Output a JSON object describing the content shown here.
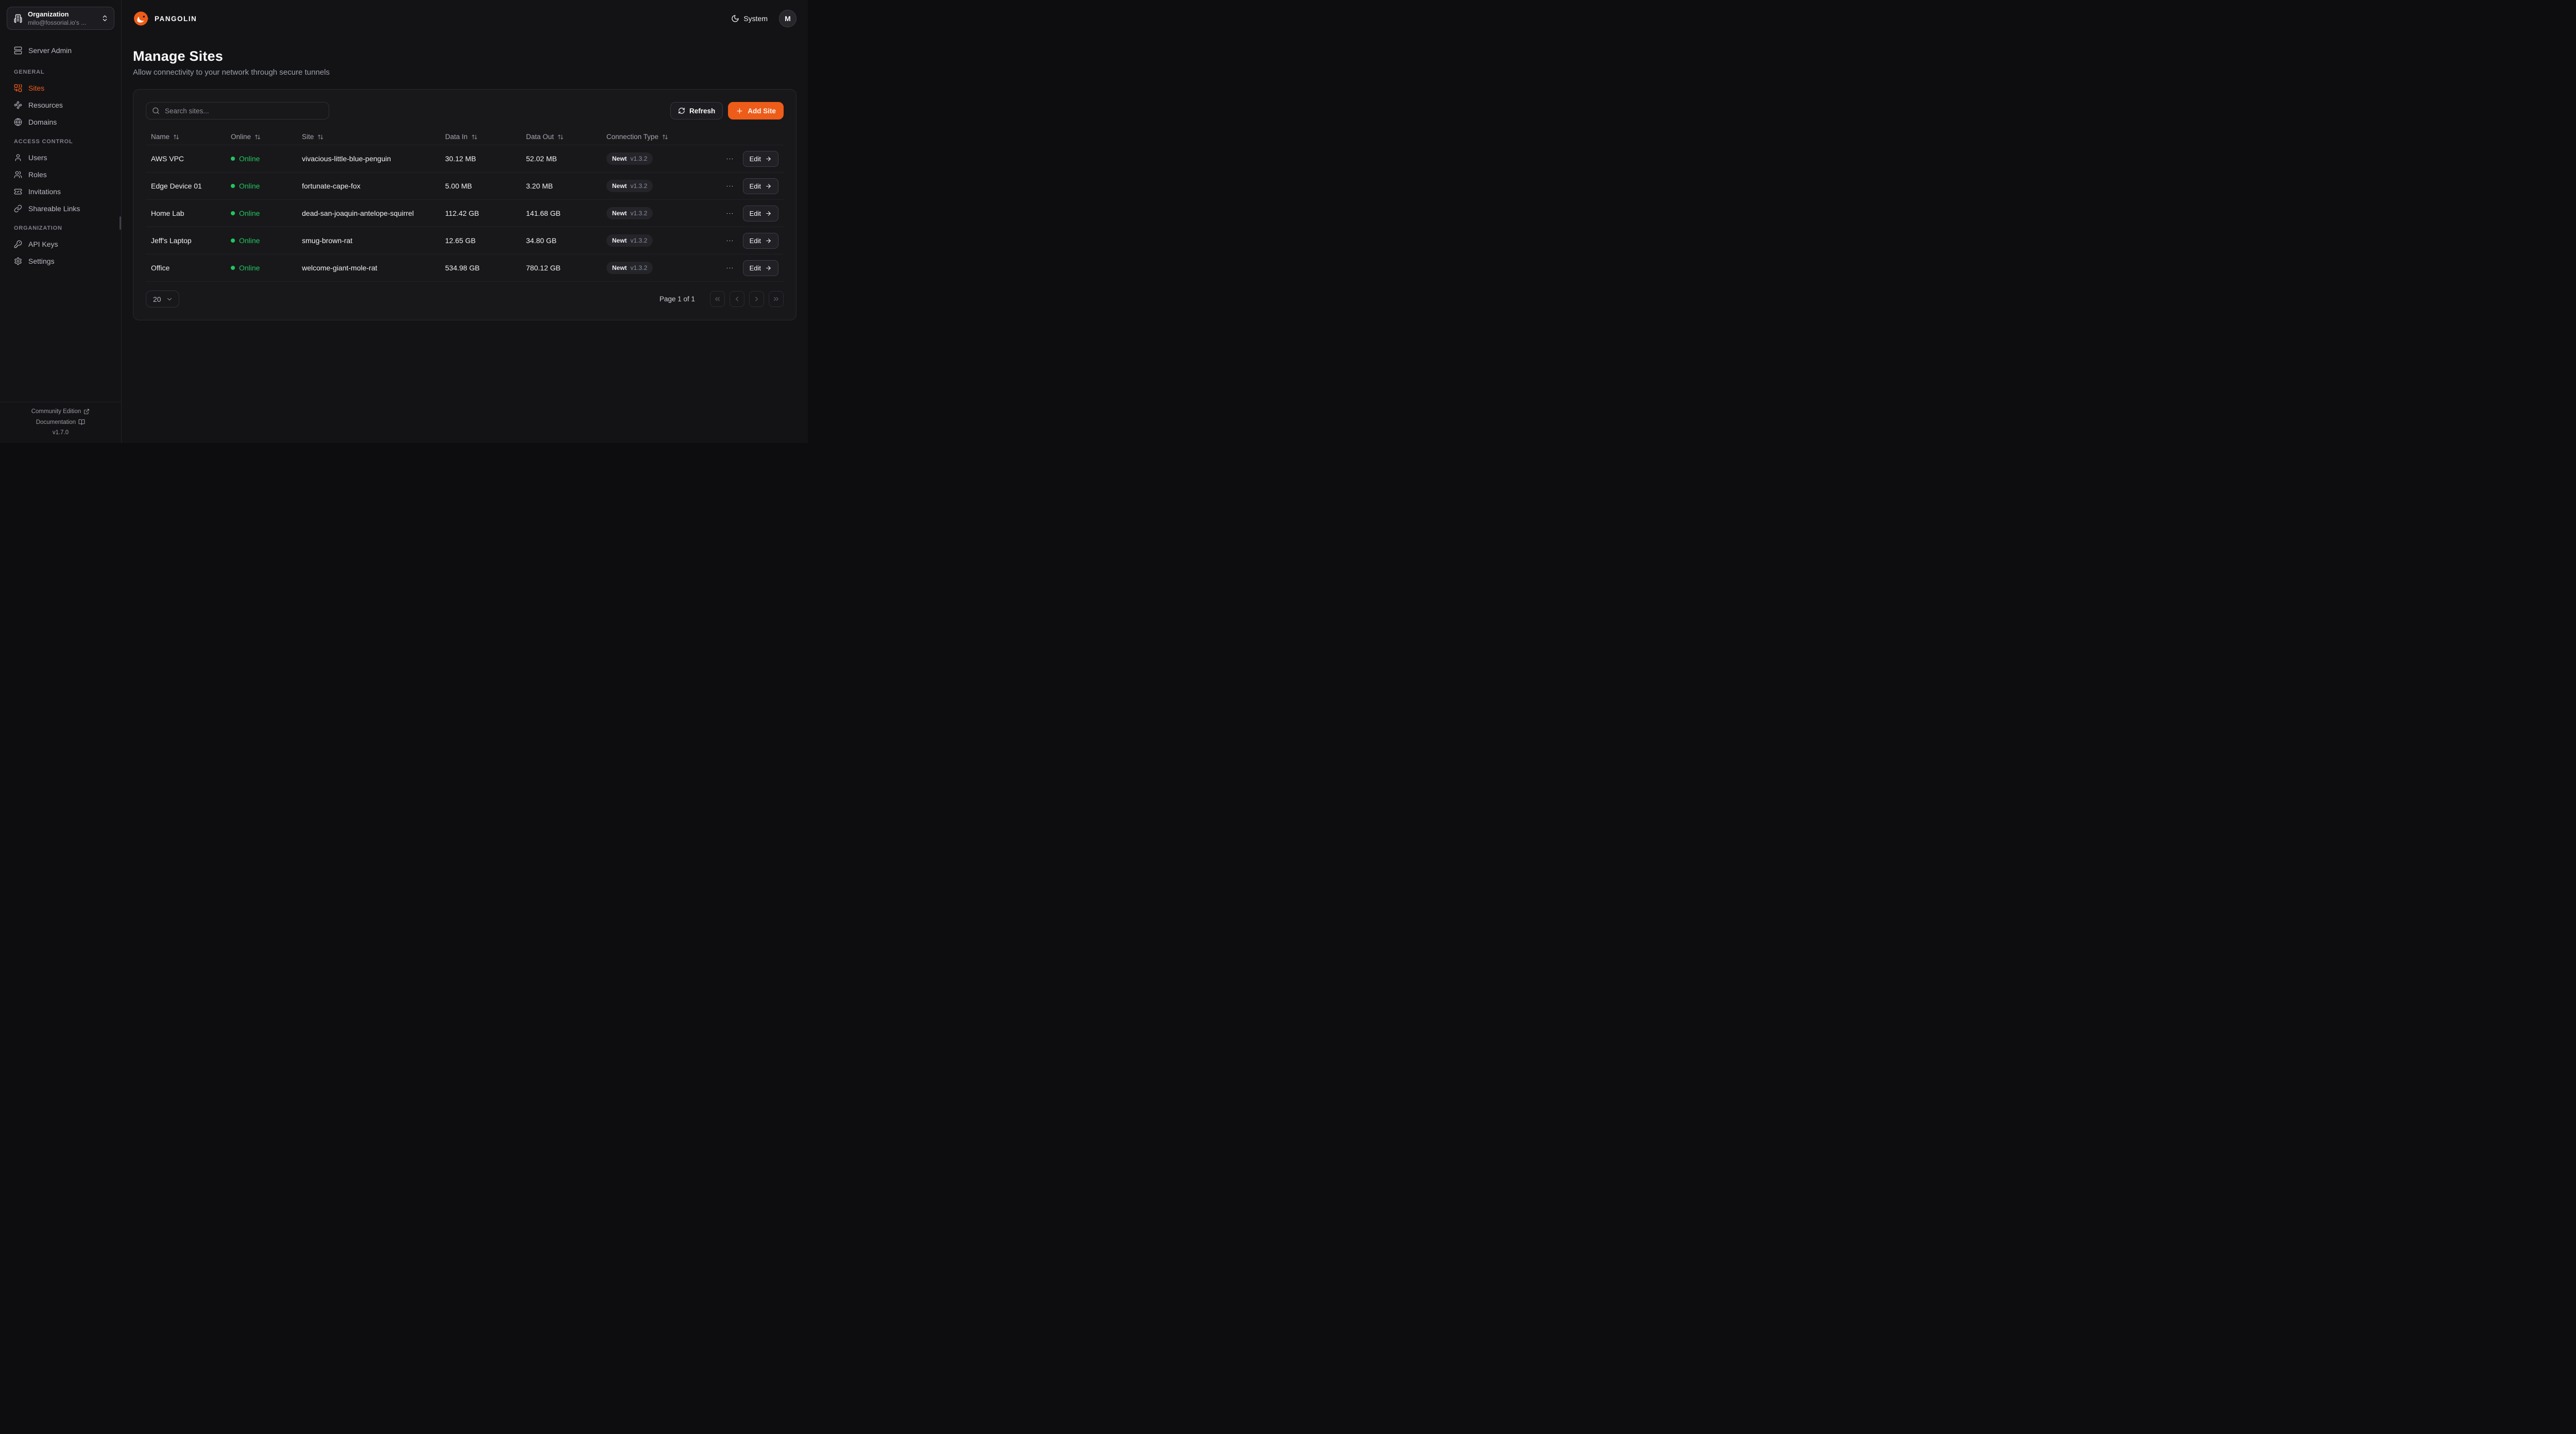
{
  "colors": {
    "accent": "#ee5c19",
    "online_green": "#22c55e"
  },
  "sidebar": {
    "org_picker": {
      "label": "Organization",
      "value": "milo@fossorial.io's ...",
      "icon": "building-icon",
      "chevron": "chevrons-up-down-icon"
    },
    "server_admin": {
      "label": "Server Admin",
      "icon": "server-icon"
    },
    "sections": [
      {
        "label": "GENERAL",
        "items": [
          {
            "label": "Sites",
            "icon": "combine-icon",
            "active": true
          },
          {
            "label": "Resources",
            "icon": "waypoints-icon",
            "active": false
          },
          {
            "label": "Domains",
            "icon": "globe-icon",
            "active": false
          }
        ]
      },
      {
        "label": "ACCESS CONTROL",
        "items": [
          {
            "label": "Users",
            "icon": "user-icon",
            "active": false
          },
          {
            "label": "Roles",
            "icon": "users-icon",
            "active": false
          },
          {
            "label": "Invitations",
            "icon": "ticket-check-icon",
            "active": false
          },
          {
            "label": "Shareable Links",
            "icon": "link-icon",
            "active": false
          }
        ]
      },
      {
        "label": "ORGANIZATION",
        "items": [
          {
            "label": "API Keys",
            "icon": "key-icon",
            "active": false
          },
          {
            "label": "Settings",
            "icon": "gear-icon",
            "active": false
          }
        ]
      }
    ],
    "footer": {
      "community_label": "Community Edition",
      "documentation_label": "Documentation",
      "version": "v1.7.0"
    }
  },
  "header": {
    "brand": "PANGOLIN",
    "theme_label": "System",
    "avatar_initial": "M"
  },
  "page": {
    "title": "Manage Sites",
    "subtitle": "Allow connectivity to your network through secure tunnels"
  },
  "toolbar": {
    "search_placeholder": "Search sites...",
    "refresh_label": "Refresh",
    "add_site_label": "Add Site"
  },
  "table": {
    "columns": [
      "Name",
      "Online",
      "Site",
      "Data In",
      "Data Out",
      "Connection Type"
    ],
    "edit_label": "Edit",
    "rows": [
      {
        "name": "AWS VPC",
        "status": "Online",
        "site": "vivacious-little-blue-penguin",
        "data_in": "30.12 MB",
        "data_out": "52.02 MB",
        "conn_name": "Newt",
        "conn_version": "v1.3.2"
      },
      {
        "name": "Edge Device 01",
        "status": "Online",
        "site": "fortunate-cape-fox",
        "data_in": "5.00 MB",
        "data_out": "3.20 MB",
        "conn_name": "Newt",
        "conn_version": "v1.3.2"
      },
      {
        "name": "Home Lab",
        "status": "Online",
        "site": "dead-san-joaquin-antelope-squirrel",
        "data_in": "112.42 GB",
        "data_out": "141.68 GB",
        "conn_name": "Newt",
        "conn_version": "v1.3.2"
      },
      {
        "name": "Jeff's Laptop",
        "status": "Online",
        "site": "smug-brown-rat",
        "data_in": "12.65 GB",
        "data_out": "34.80 GB",
        "conn_name": "Newt",
        "conn_version": "v1.3.2"
      },
      {
        "name": "Office",
        "status": "Online",
        "site": "welcome-giant-mole-rat",
        "data_in": "534.98 GB",
        "data_out": "780.12 GB",
        "conn_name": "Newt",
        "conn_version": "v1.3.2"
      }
    ]
  },
  "pagination": {
    "page_size": "20",
    "page_info": "Page 1 of 1"
  }
}
